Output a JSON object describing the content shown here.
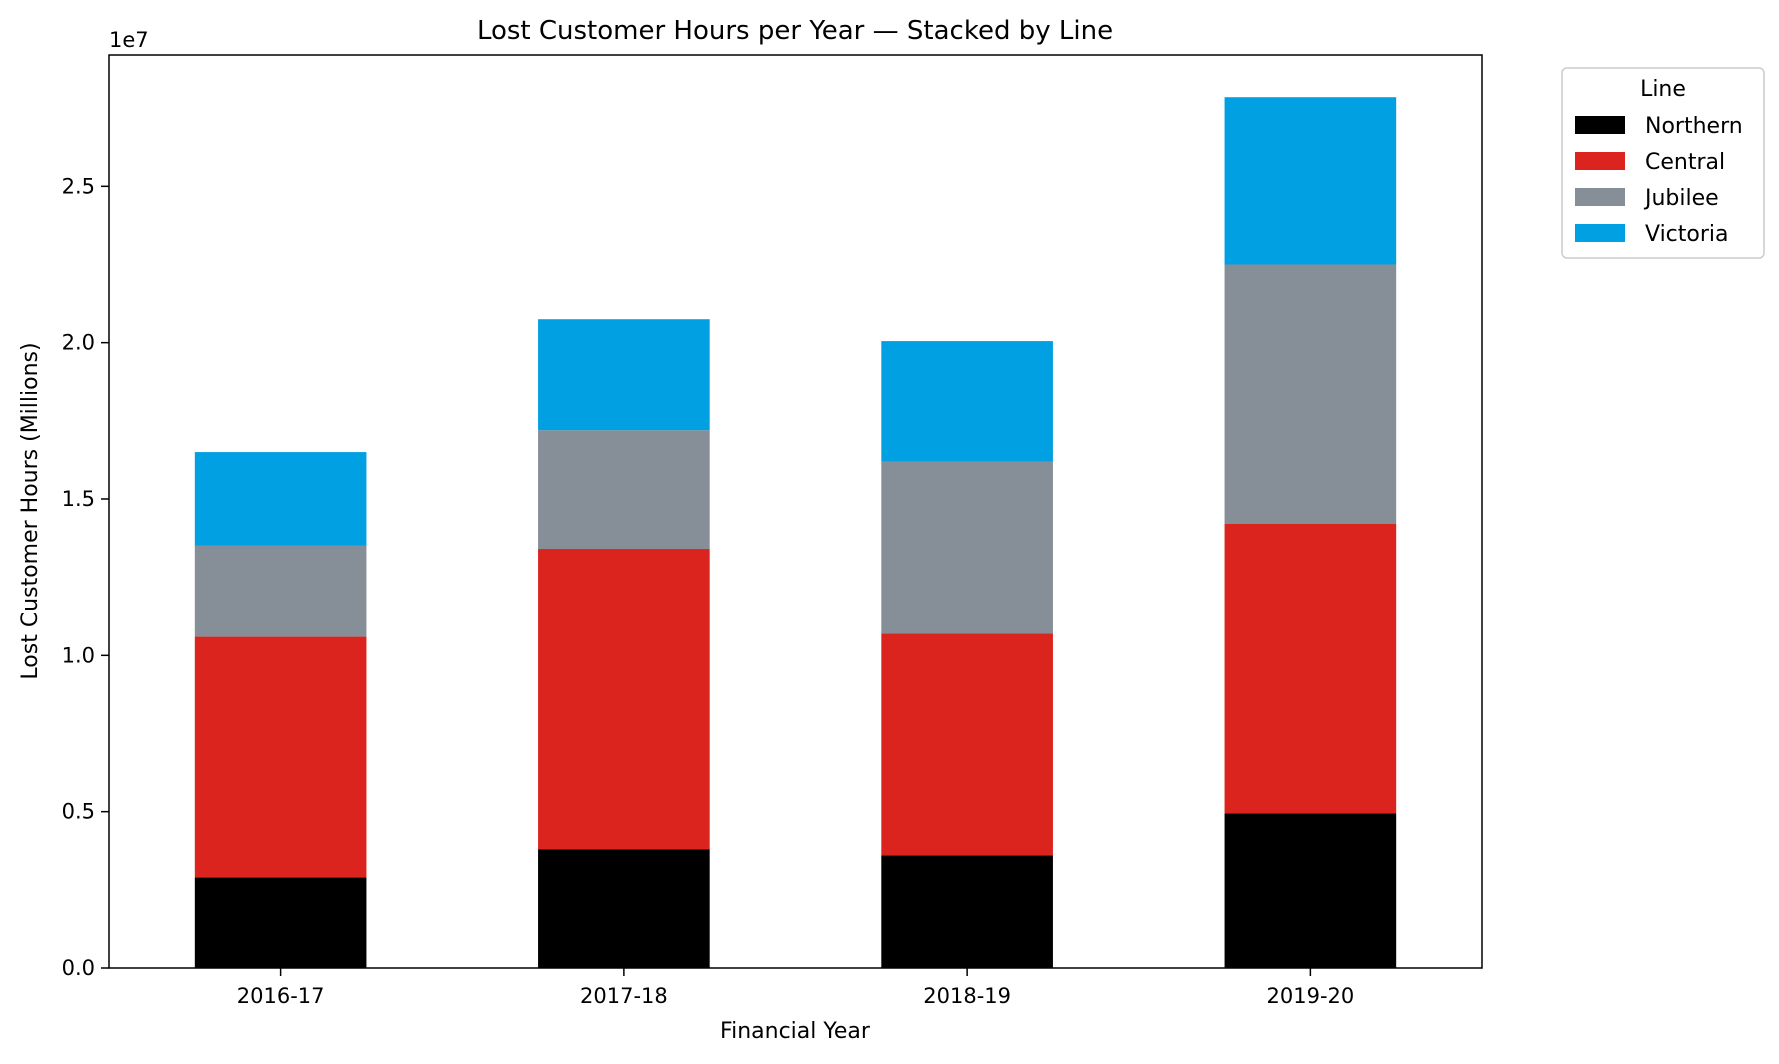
{
  "chart_data": {
    "type": "bar",
    "stacked": true,
    "title": "Lost Customer Hours per Year — Stacked by Line",
    "xlabel": "Financial Year",
    "ylabel": "Lost Customer Hours (Millions)",
    "y_offset_label": "1e7",
    "categories": [
      "2016-17",
      "2017-18",
      "2018-19",
      "2019-20"
    ],
    "ylim": [
      0,
      29200000
    ],
    "yticks": [
      {
        "value": 0,
        "label": "0.0"
      },
      {
        "value": 5000000,
        "label": "0.5"
      },
      {
        "value": 10000000,
        "label": "1.0"
      },
      {
        "value": 15000000,
        "label": "1.5"
      },
      {
        "value": 20000000,
        "label": "2.0"
      },
      {
        "value": 25000000,
        "label": "2.5"
      }
    ],
    "grid": false,
    "legend": {
      "title": "Line",
      "placement": "outside-top-right"
    },
    "series": [
      {
        "name": "Northern",
        "color": "#000000",
        "values": [
          2900000,
          3800000,
          3600000,
          4950000
        ]
      },
      {
        "name": "Central",
        "color": "#dc241f",
        "values": [
          7700000,
          9600000,
          7100000,
          9250000
        ]
      },
      {
        "name": "Jubilee",
        "color": "#868f98",
        "values": [
          2900000,
          3800000,
          5500000,
          8300000
        ]
      },
      {
        "name": "Victoria",
        "color": "#00a0e2",
        "values": [
          3000000,
          3550000,
          3850000,
          5350000
        ]
      }
    ]
  }
}
